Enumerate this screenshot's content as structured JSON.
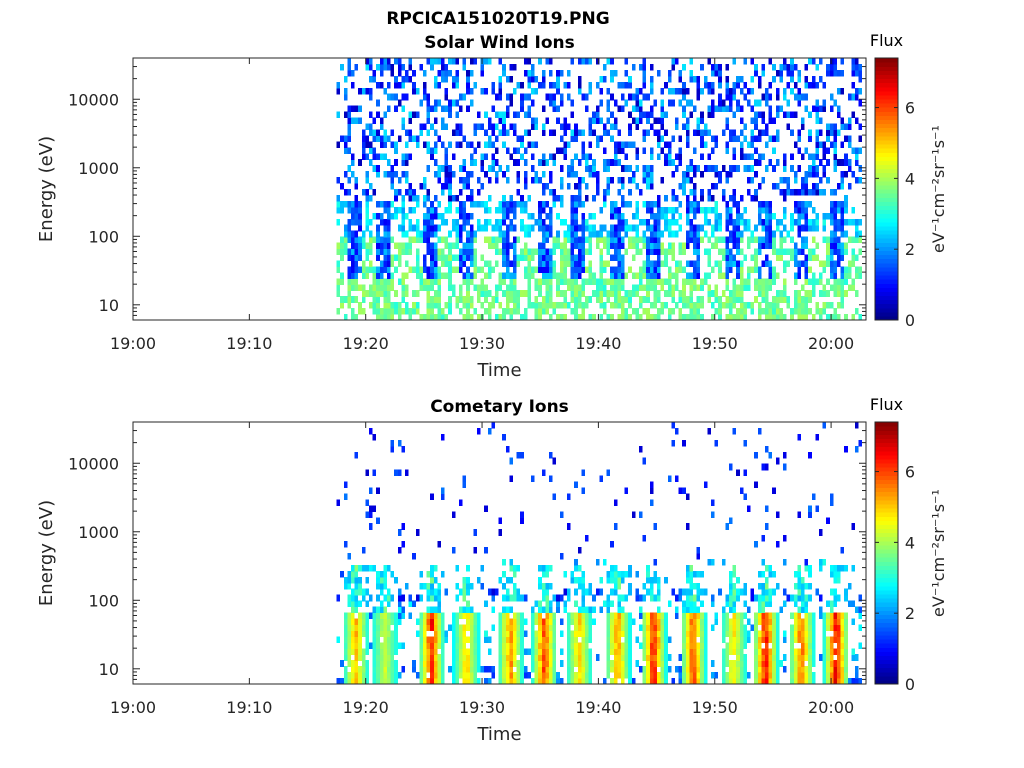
{
  "figure": {
    "title": "RPCICA151020T19.PNG"
  },
  "colorscale": [
    "#00007f",
    "#0000ff",
    "#007fff",
    "#00ffff",
    "#7fff7f",
    "#ffff00",
    "#ff7f00",
    "#ff0000",
    "#7f0000"
  ],
  "chart_data": [
    {
      "type": "heatmap",
      "title": "Solar Wind Ions",
      "xlabel": "Time",
      "ylabel": "Energy (eV)",
      "x_ticks": [
        "19:00",
        "19:10",
        "19:20",
        "19:30",
        "19:40",
        "19:50",
        "20:00"
      ],
      "x_tick_minutes": [
        0,
        10,
        20,
        30,
        40,
        50,
        60
      ],
      "xlim_minutes": [
        0,
        63
      ],
      "y_scale": "log",
      "y_ticks": [
        "10",
        "100",
        "1000",
        "10000"
      ],
      "y_tick_values": [
        10,
        100,
        1000,
        10000
      ],
      "ylim": [
        6,
        40000
      ],
      "data_start_minute": 17.5,
      "colorbar": {
        "title": "Flux",
        "label": "eV⁻¹cm⁻²sr⁻¹s⁻¹",
        "ticks": [
          "0",
          "2",
          "4",
          "6"
        ],
        "tick_values": [
          0,
          2,
          4,
          6
        ],
        "range": [
          0,
          7.4
        ]
      },
      "burst_minutes": [
        19.0,
        21.5,
        25.5,
        28.5,
        32.3,
        35.2,
        38.2,
        41.5,
        44.6,
        48.0,
        51.5,
        54.2,
        57.3,
        60.3
      ],
      "features": {
        "high_energy_background": "sparse dark-blue to light-blue points spanning ~300 eV to ~20000 eV, flux ~0.5–2.5",
        "mid_energy_band": "cyan/light-blue points ~100–300 eV, flux ~2–3",
        "low_energy_band": "green/cyan blocks ~6–50 eV, flux ~3–4, with blue streaks at bursts"
      }
    },
    {
      "type": "heatmap",
      "title": "Cometary Ions",
      "xlabel": "Time",
      "ylabel": "Energy (eV)",
      "x_ticks": [
        "19:00",
        "19:10",
        "19:20",
        "19:30",
        "19:40",
        "19:50",
        "20:00"
      ],
      "x_tick_minutes": [
        0,
        10,
        20,
        30,
        40,
        50,
        60
      ],
      "xlim_minutes": [
        0,
        63
      ],
      "y_scale": "log",
      "y_ticks": [
        "10",
        "100",
        "1000",
        "10000"
      ],
      "y_tick_values": [
        10,
        100,
        1000,
        10000
      ],
      "ylim": [
        6,
        40000
      ],
      "data_start_minute": 17.5,
      "colorbar": {
        "title": "Flux",
        "label": "eV⁻¹cm⁻²sr⁻¹s⁻¹",
        "ticks": [
          "0",
          "2",
          "4",
          "6"
        ],
        "tick_values": [
          0,
          2,
          4,
          6
        ],
        "range": [
          0,
          7.4
        ]
      },
      "burst_minutes": [
        19.0,
        21.5,
        25.5,
        28.5,
        32.3,
        35.2,
        38.2,
        41.5,
        44.6,
        48.0,
        51.5,
        54.2,
        57.3,
        60.3
      ],
      "burst_peak_flux": [
        5.5,
        4.5,
        6.8,
        5.2,
        5.8,
        6.5,
        5.3,
        5.8,
        6.9,
        6.5,
        5.0,
        7.0,
        6.2,
        7.2
      ],
      "features": {
        "burst_core": "yellow/orange/red columns at ~10–50 eV, flux up to ~7.2",
        "burst_halo": "green/cyan extending up to ~300 eV",
        "band_100eV": "blue dotted band ~100–150 eV",
        "high_energy_background": "very sparse dark-blue points up to ~10000 eV"
      }
    }
  ]
}
